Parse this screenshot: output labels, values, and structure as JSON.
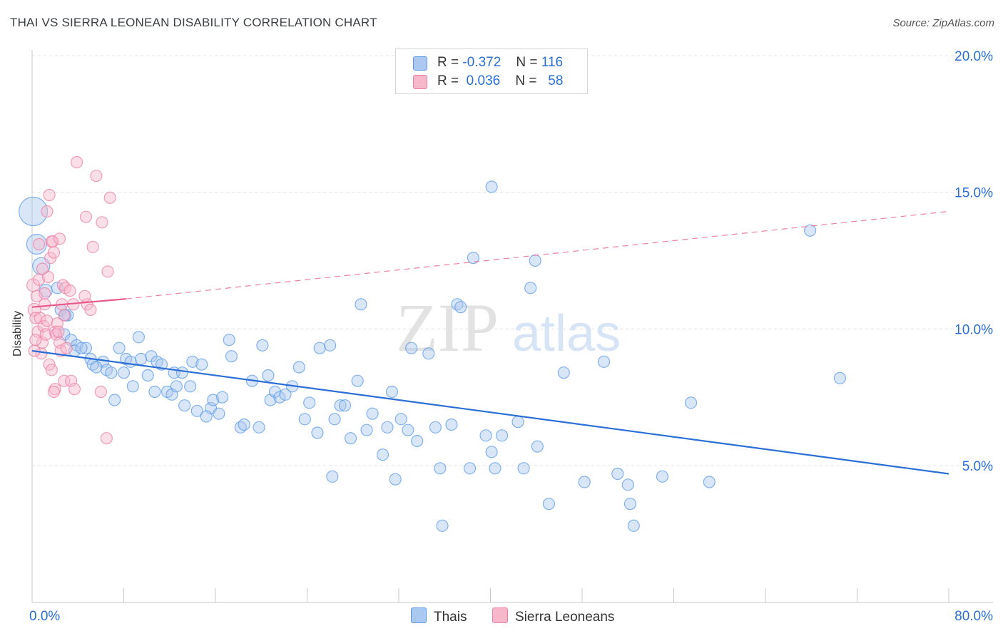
{
  "title": "THAI VS SIERRA LEONEAN DISABILITY CORRELATION CHART",
  "source": "Source: ZipAtlas.com",
  "watermark": {
    "zip": "ZIP",
    "atlas": "atlas"
  },
  "legend": {
    "rows": [
      {
        "r_label": "R =",
        "r_value": "-0.372",
        "n_label": "N =",
        "n_value": "116",
        "color": "#aac8f0"
      },
      {
        "r_label": "R =",
        "r_value": "0.036",
        "n_label": "N =",
        "n_value": "58",
        "color": "#f7b8cc"
      }
    ]
  },
  "bottom_legend": [
    "Thais",
    "Sierra Leoneans"
  ],
  "chart_data": {
    "type": "scatter",
    "xlabel": "",
    "ylabel": "Disability",
    "xlim": [
      0,
      80
    ],
    "ylim": [
      0,
      21
    ],
    "x_tick_labels": [
      "0.0%",
      "80.0%"
    ],
    "y_tick_values": [
      5,
      10,
      15,
      20
    ],
    "y_tick_labels": [
      "5.0%",
      "10.0%",
      "15.0%",
      "20.0%"
    ],
    "grid": "horizontal dashed",
    "series": [
      {
        "name": "Thais",
        "color": "#5b9be8",
        "fill": "#aac8f0",
        "trend": {
          "x0": 0,
          "y0": 9.2,
          "x1": 80,
          "y1": 4.7
        },
        "points": [
          [
            0.1,
            14.3,
            20
          ],
          [
            0.4,
            13.1,
            14
          ],
          [
            0.8,
            12.3,
            12
          ],
          [
            1.2,
            11.4,
            9
          ],
          [
            2.2,
            11.5,
            8
          ],
          [
            2.5,
            10.7,
            8
          ],
          [
            3.1,
            10.5,
            8
          ],
          [
            2.9,
            10.5,
            8
          ],
          [
            2.8,
            9.8,
            8
          ],
          [
            3.4,
            9.6,
            8
          ],
          [
            3.9,
            9.4,
            8
          ],
          [
            4.7,
            9.3,
            8
          ],
          [
            3.7,
            9.2,
            8
          ],
          [
            4.3,
            9.3,
            8
          ],
          [
            5.1,
            8.9,
            8
          ],
          [
            5.3,
            8.7,
            8
          ],
          [
            6.2,
            8.8,
            8
          ],
          [
            5.6,
            8.6,
            8
          ],
          [
            6.5,
            8.5,
            8
          ],
          [
            6.9,
            8.4,
            8
          ],
          [
            7.6,
            9.3,
            8
          ],
          [
            8.2,
            8.9,
            8
          ],
          [
            8.6,
            8.8,
            8
          ],
          [
            9.5,
            8.9,
            8
          ],
          [
            9.3,
            9.7,
            8
          ],
          [
            10.4,
            9.0,
            8
          ],
          [
            8.0,
            8.4,
            8
          ],
          [
            8.8,
            7.9,
            8
          ],
          [
            10.1,
            8.3,
            8
          ],
          [
            10.9,
            8.8,
            8
          ],
          [
            11.3,
            8.7,
            8
          ],
          [
            12.4,
            8.4,
            8
          ],
          [
            13.1,
            8.4,
            8
          ],
          [
            14.0,
            8.8,
            8
          ],
          [
            14.8,
            8.7,
            8
          ],
          [
            7.2,
            7.4,
            8
          ],
          [
            10.7,
            7.7,
            8
          ],
          [
            11.8,
            7.7,
            8
          ],
          [
            12.2,
            7.6,
            8
          ],
          [
            12.6,
            7.9,
            8
          ],
          [
            13.8,
            7.9,
            8
          ],
          [
            13.3,
            7.2,
            8
          ],
          [
            14.4,
            7.0,
            8
          ],
          [
            15.6,
            7.1,
            8
          ],
          [
            15.2,
            6.8,
            8
          ],
          [
            15.8,
            7.4,
            8
          ],
          [
            16.6,
            7.5,
            8
          ],
          [
            16.3,
            6.9,
            8
          ],
          [
            17.2,
            9.6,
            8
          ],
          [
            17.4,
            9.0,
            8
          ],
          [
            18.2,
            6.4,
            8
          ],
          [
            18.5,
            6.5,
            8
          ],
          [
            19.2,
            8.1,
            8
          ],
          [
            19.8,
            6.4,
            8
          ],
          [
            20.6,
            8.3,
            8
          ],
          [
            20.1,
            9.4,
            8
          ],
          [
            20.8,
            7.4,
            8
          ],
          [
            21.2,
            7.7,
            8
          ],
          [
            21.6,
            7.5,
            8
          ],
          [
            22.1,
            7.6,
            8
          ],
          [
            22.7,
            7.9,
            8
          ],
          [
            23.3,
            8.6,
            8
          ],
          [
            23.8,
            6.7,
            8
          ],
          [
            24.2,
            7.3,
            8
          ],
          [
            24.9,
            6.2,
            8
          ],
          [
            25.1,
            9.3,
            8
          ],
          [
            26.0,
            9.4,
            8
          ],
          [
            26.4,
            6.7,
            8
          ],
          [
            26.9,
            7.2,
            8
          ],
          [
            27.3,
            7.2,
            8
          ],
          [
            27.8,
            6.0,
            8
          ],
          [
            28.4,
            8.1,
            8
          ],
          [
            28.7,
            10.9,
            8
          ],
          [
            29.2,
            6.3,
            8
          ],
          [
            29.7,
            6.9,
            8
          ],
          [
            30.6,
            5.4,
            8
          ],
          [
            31.0,
            6.4,
            8
          ],
          [
            31.4,
            7.7,
            8
          ],
          [
            32.2,
            6.7,
            8
          ],
          [
            32.8,
            6.3,
            8
          ],
          [
            33.1,
            9.3,
            8
          ],
          [
            33.6,
            5.9,
            8
          ],
          [
            34.6,
            9.1,
            8
          ],
          [
            35.2,
            6.4,
            8
          ],
          [
            35.6,
            4.9,
            8
          ],
          [
            26.2,
            4.6,
            8
          ],
          [
            31.7,
            4.5,
            8
          ],
          [
            35.8,
            2.8,
            8
          ],
          [
            36.6,
            6.5,
            8
          ],
          [
            37.1,
            10.9,
            8
          ],
          [
            37.4,
            10.8,
            8
          ],
          [
            38.5,
            12.6,
            8
          ],
          [
            38.2,
            4.9,
            8
          ],
          [
            39.6,
            6.1,
            8
          ],
          [
            40.1,
            5.5,
            8
          ],
          [
            40.4,
            4.9,
            8
          ],
          [
            41.0,
            6.1,
            8
          ],
          [
            42.4,
            6.6,
            8
          ],
          [
            42.9,
            4.9,
            8
          ],
          [
            43.5,
            11.5,
            8
          ],
          [
            43.9,
            12.5,
            8
          ],
          [
            44.1,
            5.7,
            8
          ],
          [
            40.1,
            15.2,
            8
          ],
          [
            45.1,
            3.6,
            8
          ],
          [
            46.4,
            8.4,
            8
          ],
          [
            48.2,
            4.4,
            8
          ],
          [
            49.9,
            8.8,
            8
          ],
          [
            51.1,
            4.7,
            8
          ],
          [
            52.0,
            4.3,
            8
          ],
          [
            52.2,
            3.6,
            8
          ],
          [
            52.5,
            2.8,
            8
          ],
          [
            55.0,
            4.6,
            8
          ],
          [
            57.5,
            7.3,
            8
          ],
          [
            59.1,
            4.4,
            8
          ],
          [
            67.9,
            13.6,
            8
          ],
          [
            70.5,
            8.2,
            8
          ]
        ]
      },
      {
        "name": "Sierra Leoneans",
        "color": "#ee7fa3",
        "fill": "#f7b8cc",
        "trend": {
          "x0": 0,
          "y0": 10.8,
          "x1": 8.2,
          "y1": 11.1
        },
        "trend_dashed": {
          "x0": 8.2,
          "y0": 11.1,
          "x1": 80,
          "y1": 14.3
        },
        "points": [
          [
            0.1,
            11.6,
            9
          ],
          [
            0.2,
            10.7,
            9
          ],
          [
            0.3,
            10.4,
            8
          ],
          [
            0.4,
            11.2,
            8
          ],
          [
            0.5,
            9.9,
            8
          ],
          [
            0.6,
            11.8,
            8
          ],
          [
            0.7,
            10.4,
            8
          ],
          [
            0.8,
            9.1,
            8
          ],
          [
            0.9,
            9.5,
            8
          ],
          [
            1.0,
            10.1,
            8
          ],
          [
            1.1,
            10.9,
            8
          ],
          [
            1.2,
            9.8,
            8
          ],
          [
            1.3,
            10.3,
            8
          ],
          [
            1.4,
            11.9,
            8
          ],
          [
            1.5,
            8.7,
            8
          ],
          [
            1.6,
            12.6,
            8
          ],
          [
            1.7,
            13.2,
            8
          ],
          [
            1.8,
            13.2,
            8
          ],
          [
            1.9,
            12.8,
            8
          ],
          [
            2.0,
            9.9,
            8
          ],
          [
            2.1,
            9.8,
            8
          ],
          [
            2.2,
            10.2,
            8
          ],
          [
            2.3,
            9.9,
            8
          ],
          [
            2.4,
            9.5,
            8
          ],
          [
            2.5,
            9.2,
            8
          ],
          [
            2.6,
            10.9,
            8
          ],
          [
            2.7,
            11.6,
            8
          ],
          [
            2.8,
            10.5,
            8
          ],
          [
            2.9,
            11.5,
            8
          ],
          [
            3.0,
            9.3,
            8
          ],
          [
            2.0,
            7.8,
            8
          ],
          [
            1.9,
            7.7,
            8
          ],
          [
            2.8,
            8.1,
            8
          ],
          [
            3.4,
            8.1,
            8
          ],
          [
            3.7,
            7.8,
            8
          ],
          [
            3.3,
            11.4,
            8
          ],
          [
            3.6,
            10.9,
            8
          ],
          [
            3.9,
            16.1,
            8
          ],
          [
            4.8,
            10.9,
            8
          ],
          [
            4.6,
            11.2,
            8
          ],
          [
            4.7,
            14.1,
            8
          ],
          [
            5.1,
            10.7,
            8
          ],
          [
            5.3,
            13.0,
            8
          ],
          [
            5.6,
            15.6,
            8
          ],
          [
            6.0,
            7.7,
            8
          ],
          [
            6.6,
            12.1,
            8
          ],
          [
            6.1,
            13.9,
            8
          ],
          [
            6.8,
            14.8,
            8
          ],
          [
            6.5,
            6.0,
            8
          ],
          [
            1.3,
            14.3,
            8
          ],
          [
            1.5,
            14.9,
            8
          ],
          [
            0.9,
            12.2,
            8
          ],
          [
            0.6,
            13.1,
            8
          ],
          [
            1.1,
            11.3,
            8
          ],
          [
            1.7,
            8.5,
            8
          ],
          [
            2.4,
            13.3,
            8
          ],
          [
            0.3,
            9.6,
            8
          ],
          [
            0.2,
            9.2,
            8
          ]
        ]
      }
    ]
  }
}
